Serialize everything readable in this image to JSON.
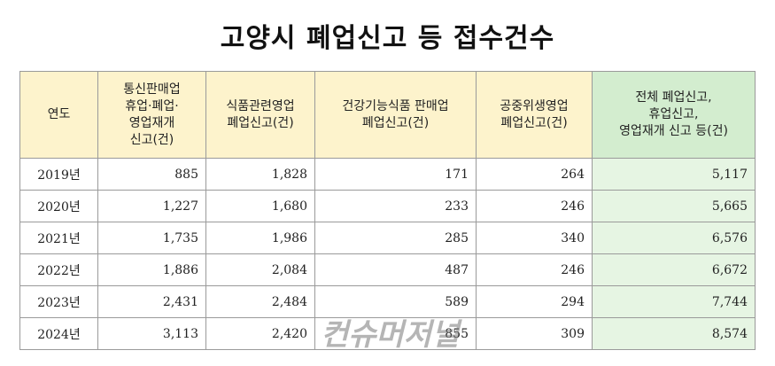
{
  "title": "고양시 폐업신고 등 접수건수",
  "table": {
    "header": [
      [
        "연도"
      ],
      [
        "통신판매업",
        "휴업·폐업·",
        "영업재개",
        "신고(건)"
      ],
      [
        "식품관련영업",
        "폐업신고(건)"
      ],
      [
        "건강기능식품 판매업",
        "폐업신고(건)"
      ],
      [
        "공중위생영업",
        "폐업신고(건)"
      ],
      [
        "전체 폐업신고,",
        "휴업신고,",
        "영업재개 신고 등(건)"
      ]
    ],
    "rows": [
      [
        "2019년",
        "885",
        "1,828",
        "171",
        "264",
        "5,117"
      ],
      [
        "2020년",
        "1,227",
        "1,680",
        "233",
        "246",
        "5,665"
      ],
      [
        "2021년",
        "1,735",
        "1,986",
        "285",
        "340",
        "6,576"
      ],
      [
        "2022년",
        "1,886",
        "2,084",
        "487",
        "246",
        "6,672"
      ],
      [
        "2023년",
        "2,431",
        "2,484",
        "589",
        "294",
        "7,744"
      ],
      [
        "2024년",
        "3,113",
        "2,420",
        "855",
        "309",
        "8,574"
      ]
    ]
  },
  "watermark": "컨슈머저널"
}
